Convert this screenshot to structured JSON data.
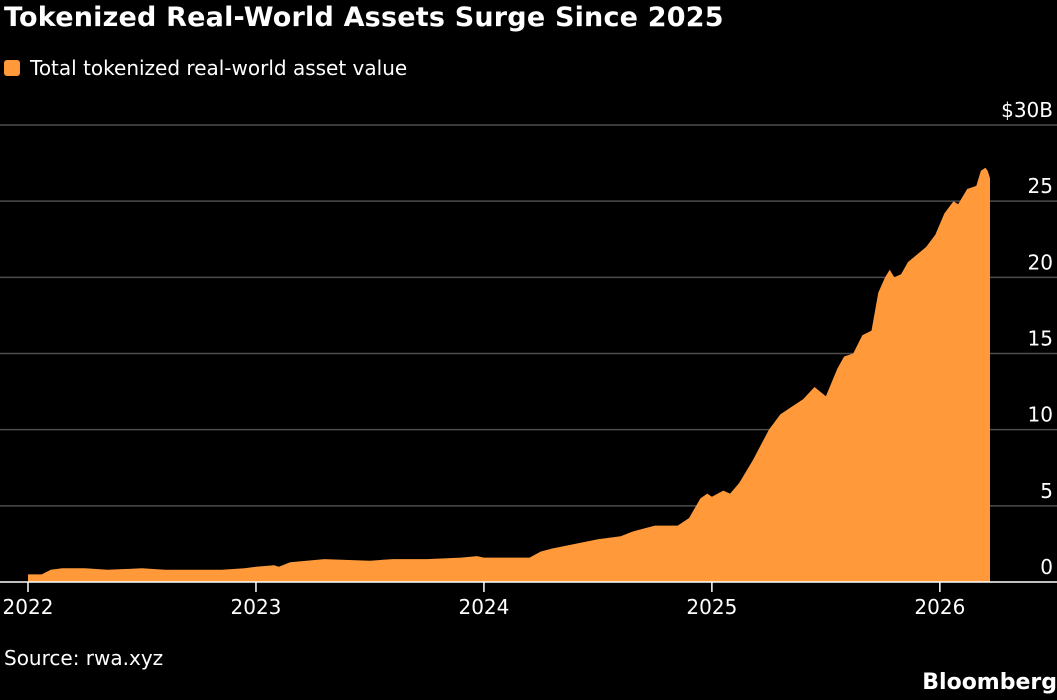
{
  "title": "Tokenized Real-World Assets Surge Since 2025",
  "legend_label": "Total tokenized real-world asset value",
  "source": "Source: rwa.xyz",
  "brand": "Bloomberg",
  "colors": {
    "series": "#FF993A",
    "background": "#000000",
    "grid": "#4d4d4d",
    "axis": "#ffffff"
  },
  "chart_data": {
    "type": "area",
    "series": [
      {
        "name": "Total tokenized real-world asset value",
        "x": [
          2022.0,
          2022.06,
          2022.1,
          2022.15,
          2022.25,
          2022.35,
          2022.5,
          2022.6,
          2022.75,
          2022.85,
          2022.95,
          2023.0,
          2023.08,
          2023.1,
          2023.15,
          2023.3,
          2023.5,
          2023.6,
          2023.75,
          2023.9,
          2023.97,
          2024.0,
          2024.1,
          2024.2,
          2024.25,
          2024.3,
          2024.4,
          2024.5,
          2024.6,
          2024.65,
          2024.75,
          2024.85,
          2024.9,
          2024.95,
          2024.98,
          2025.0,
          2025.05,
          2025.08,
          2025.12,
          2025.18,
          2025.25,
          2025.3,
          2025.35,
          2025.4,
          2025.45,
          2025.5,
          2025.55,
          2025.58,
          2025.62,
          2025.66,
          2025.7,
          2025.73,
          2025.76,
          2025.78,
          2025.8,
          2025.83,
          2025.86,
          2025.9,
          2025.94,
          2025.98,
          2026.02,
          2026.06,
          2026.08,
          2026.12,
          2026.16,
          2026.18,
          2026.2,
          2026.21,
          2026.22
        ],
        "values": [
          0.5,
          0.5,
          0.8,
          0.9,
          0.9,
          0.8,
          0.9,
          0.8,
          0.8,
          0.8,
          0.9,
          1.0,
          1.1,
          1.0,
          1.3,
          1.5,
          1.4,
          1.5,
          1.5,
          1.6,
          1.7,
          1.6,
          1.6,
          1.6,
          2.0,
          2.2,
          2.5,
          2.8,
          3.0,
          3.3,
          3.7,
          3.7,
          4.2,
          5.5,
          5.8,
          5.6,
          6.0,
          5.8,
          6.5,
          8.0,
          10.0,
          11.0,
          11.5,
          12.0,
          12.8,
          12.2,
          14.0,
          14.8,
          15.0,
          16.2,
          16.5,
          19.0,
          20.0,
          20.5,
          20.0,
          20.2,
          21.0,
          21.5,
          22.0,
          22.8,
          24.2,
          25.0,
          24.8,
          25.8,
          26.0,
          27.0,
          27.2,
          27.0,
          26.5
        ]
      }
    ],
    "x_ticks": [
      2022,
      2023,
      2024,
      2025,
      2026
    ],
    "x_tick_labels": [
      "2022",
      "2023",
      "2024",
      "2025",
      "2026"
    ],
    "y_ticks": [
      0,
      5,
      10,
      15,
      20,
      25,
      30
    ],
    "y_tick_labels": [
      "0",
      "5",
      "10",
      "15",
      "20",
      "25",
      "$30B"
    ],
    "xlim": [
      2022.0,
      2026.22
    ],
    "ylim": [
      0,
      30
    ],
    "grid": true,
    "legend": "top-left"
  }
}
